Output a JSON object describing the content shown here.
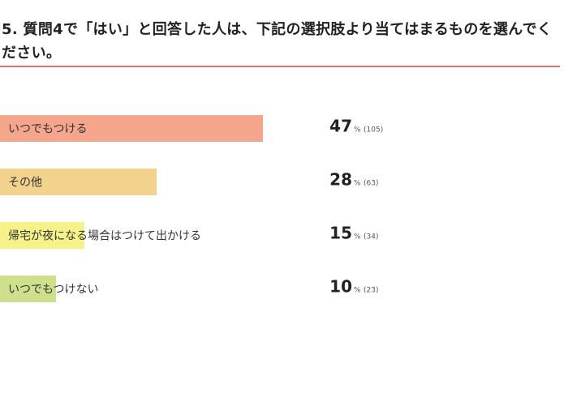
{
  "question": {
    "title": "5. 質問4で「はい」と回答した人は、下記の選択肢より当てはまるものを選んでください。"
  },
  "chart_data": {
    "type": "bar",
    "orientation": "horizontal",
    "categories": [
      "いつでもつける",
      "その他",
      "帰宅が夜になる場合はつけて出かける",
      "いつでもつけない"
    ],
    "values": [
      47,
      28,
      15,
      10
    ],
    "counts": [
      105,
      63,
      34,
      23
    ],
    "value_unit": "%",
    "colors": [
      "#f4a58c",
      "#f3d28e",
      "#f6f28a",
      "#cfe08c"
    ],
    "xlim": [
      0,
      100
    ],
    "grid": false
  }
}
